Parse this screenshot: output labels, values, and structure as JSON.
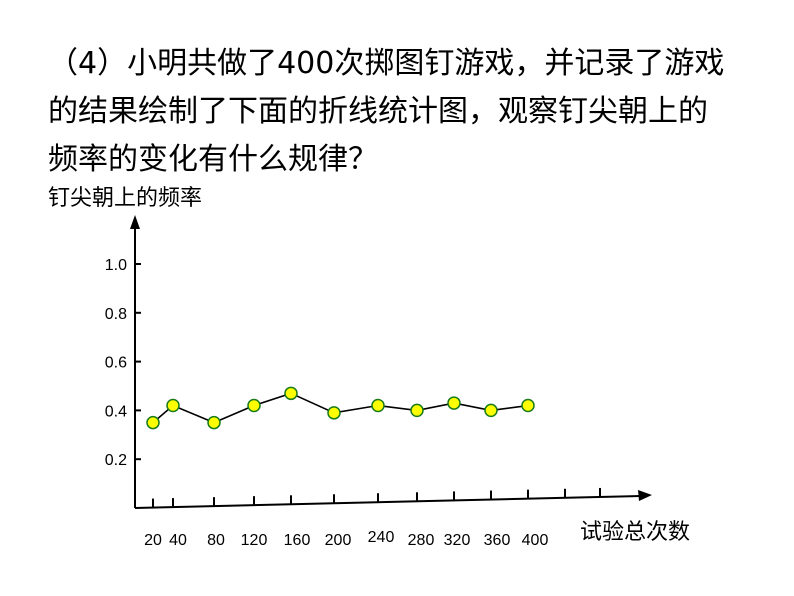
{
  "question": {
    "lines": [
      "（4）小明共做了400次掷图钉游戏，并记录了游戏",
      "的结果绘制了下面的折线统计图，观察钉尖朝上的",
      "频率的变化有什么规律？"
    ]
  },
  "chart_data": {
    "type": "line",
    "ylabel": "钉尖朝上的频率",
    "xlabel": "试验总次数",
    "x": [
      20,
      40,
      80,
      120,
      160,
      200,
      240,
      280,
      320,
      360,
      400
    ],
    "y": [
      0.35,
      0.42,
      0.35,
      0.42,
      0.47,
      0.39,
      0.42,
      0.4,
      0.43,
      0.4,
      0.42
    ],
    "x_tick_labels": [
      "20",
      "40",
      "80",
      "120",
      "160",
      "200",
      "240",
      "280",
      "320",
      "360",
      "400"
    ],
    "y_ticks": [
      0.2,
      0.4,
      0.6,
      0.8,
      1.0
    ],
    "y_tick_labels": [
      "0.2",
      "0.4",
      "0.6",
      "0.8",
      "1.0"
    ],
    "ylim": [
      0,
      1.0
    ],
    "grid": false,
    "legend": "none",
    "colors": {
      "marker_fill": "#ffff00",
      "marker_stroke": "#1a7a1a",
      "line": "#000000",
      "axis": "#000000"
    }
  }
}
